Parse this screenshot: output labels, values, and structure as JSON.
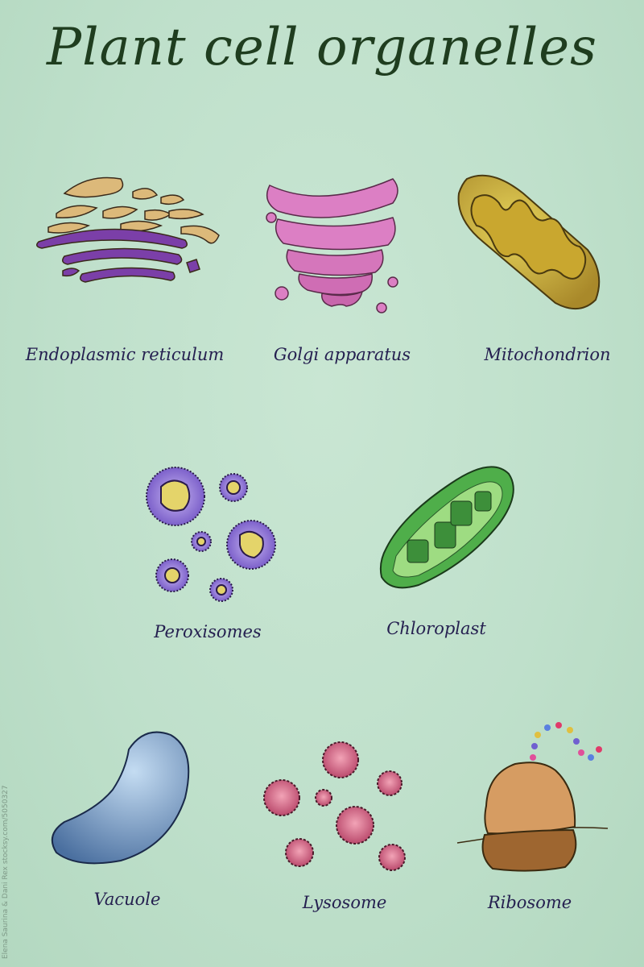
{
  "title": "Plant cell organelles",
  "organelles": [
    {
      "label": "Endoplasmic reticulum"
    },
    {
      "label": "Golgi apparatus"
    },
    {
      "label": "Mitochondrion"
    },
    {
      "label": "Peroxisomes"
    },
    {
      "label": "Chloroplast"
    },
    {
      "label": "Vacuole"
    },
    {
      "label": "Lysosome"
    },
    {
      "label": "Ribosome"
    }
  ],
  "credit": "Elena Saurina & Dani Rex stocksy.com/5050327",
  "colors": {
    "background": "#c2e2cd",
    "er_rough": "#7b3fa8",
    "er_smooth": "#dcb97a",
    "golgi": "#dc7fc4",
    "mitochondrion": "#e0c44a",
    "peroxisome": "#8a6fd0",
    "chloroplast": "#4fae4a",
    "vacuole": "#7ea3d2",
    "lysosome": "#cf5f7f",
    "ribosome": "#c8905a"
  }
}
